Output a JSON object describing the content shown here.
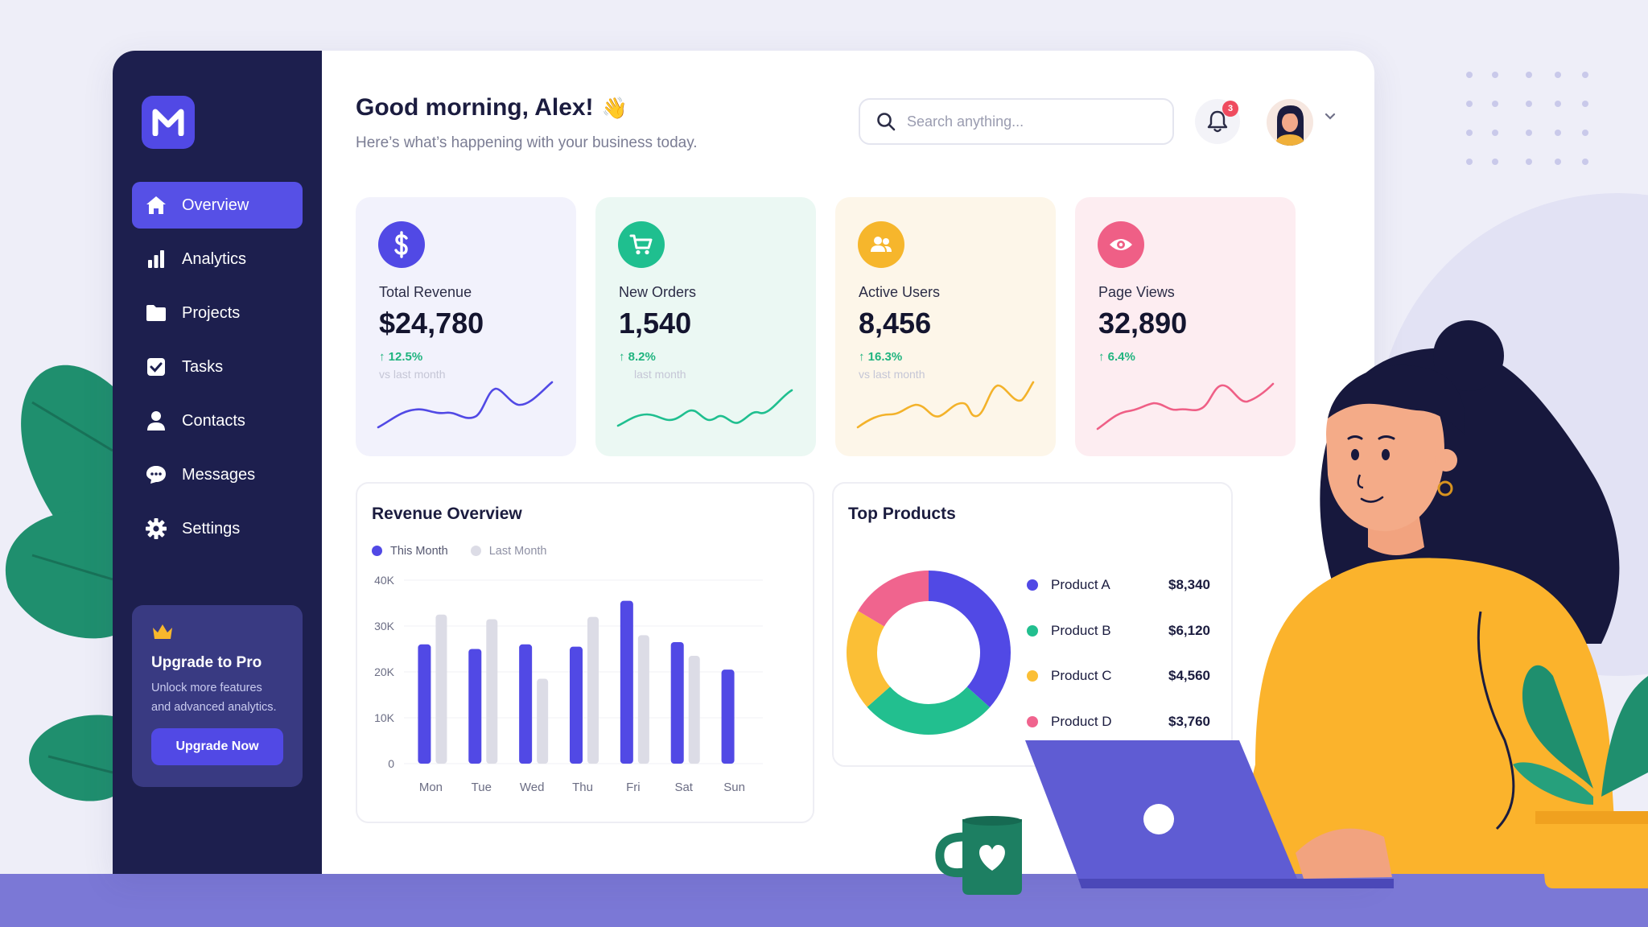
{
  "brand": {
    "logo_letter": "M"
  },
  "sidebar": {
    "items": [
      {
        "label": "Overview",
        "icon": "home-icon",
        "active": true
      },
      {
        "label": "Analytics",
        "icon": "bar-chart-icon"
      },
      {
        "label": "Projects",
        "icon": "folder-icon"
      },
      {
        "label": "Tasks",
        "icon": "checkbox-icon"
      },
      {
        "label": "Contacts",
        "icon": "user-icon"
      },
      {
        "label": "Messages",
        "icon": "chat-icon"
      },
      {
        "label": "Settings",
        "icon": "gear-icon"
      }
    ],
    "promo": {
      "title": "Upgrade to Pro",
      "line1": "Unlock more features",
      "line2": "and advanced analytics.",
      "button": "Upgrade Now"
    }
  },
  "header": {
    "greeting": "Good morning, Alex!",
    "greeting_emoji": "👋",
    "subtitle": "Here’s what’s happening with your business today.",
    "search_placeholder": "Search anything...",
    "notification_count": "3"
  },
  "stats": [
    {
      "label": "Total Revenue",
      "value": "$24,780",
      "change": "↑ 12.5%",
      "compare": "vs last month",
      "color": "#5149e5",
      "bg": "#f2f2fc",
      "icon": "dollar-icon"
    },
    {
      "label": "New Orders",
      "value": "1,540",
      "change": "↑ 8.2%",
      "compare": "last month",
      "color": "#1fbf8f",
      "bg": "#ebf8f3",
      "icon": "cart-icon"
    },
    {
      "label": "Active Users",
      "value": "8,456",
      "change": "↑ 16.3%",
      "compare": "vs last month",
      "color": "#f6b62c",
      "bg": "#fdf6e9",
      "icon": "users-icon"
    },
    {
      "label": "Page Views",
      "value": "32,890",
      "change": "↑ 6.4%",
      "compare": "",
      "color": "#ef5f86",
      "bg": "#fdedf1",
      "icon": "eye-icon"
    }
  ],
  "revenue_overview": {
    "title": "Revenue Overview"
  },
  "top_products": {
    "title": "Top Products",
    "items": [
      {
        "name": "Product A",
        "value": "$8,340",
        "color": "#5149e5"
      },
      {
        "name": "Product B",
        "value": "$6,120",
        "color": "#22bf8f"
      },
      {
        "name": "Product C",
        "value": "$4,560",
        "color": "#fbbf36"
      },
      {
        "name": "Product D",
        "value": "$3,760",
        "color": "#f0648e"
      }
    ]
  },
  "chart_data": [
    {
      "type": "bar",
      "categories": [
        "Mon",
        "Tue",
        "Wed",
        "Thu",
        "Fri",
        "Sat",
        "Sun"
      ],
      "series": [
        {
          "name": "This Month",
          "values": [
            26,
            25,
            26,
            25.5,
            35.5,
            26.5,
            20.5
          ],
          "color": "#5149e5"
        },
        {
          "name": "Last Month",
          "values": [
            32.5,
            31.5,
            18.5,
            32,
            28,
            23.5,
            0
          ],
          "color": "#dcdce6"
        }
      ],
      "yticks": [
        "40K",
        "30K",
        "20K",
        "10K",
        "0"
      ],
      "ylim": [
        0,
        40
      ]
    },
    {
      "type": "pie",
      "categories": [
        "Product A",
        "Product B",
        "Product C",
        "Product D"
      ],
      "values": [
        8340,
        6120,
        4560,
        3760
      ]
    }
  ]
}
